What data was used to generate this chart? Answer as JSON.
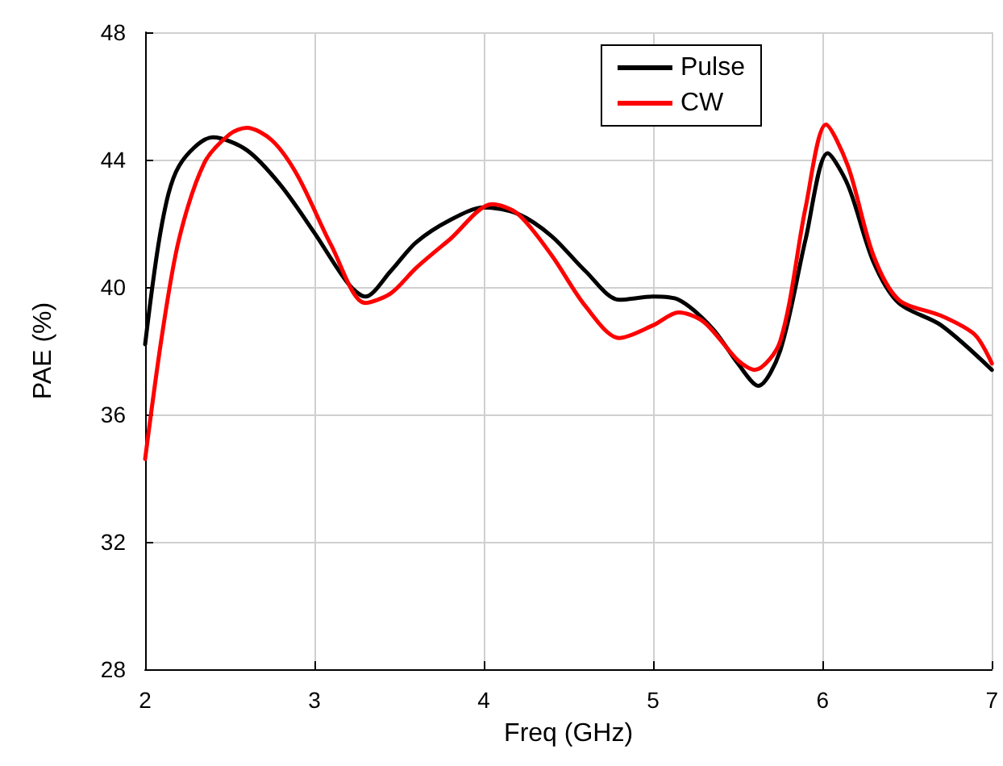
{
  "chart_data": {
    "type": "line",
    "xlabel": "Freq (GHz)",
    "ylabel": "PAE (%)",
    "xlim": [
      2,
      7
    ],
    "xticks": [
      2,
      3,
      4,
      5,
      6,
      7
    ],
    "ylim": [
      28,
      48
    ],
    "yticks": [
      28,
      32,
      36,
      40,
      44,
      48
    ],
    "grid": true,
    "legend": "top right",
    "marker": "none",
    "line_style": "solid",
    "series": [
      {
        "name": "Pulse",
        "color": "#000000",
        "x": [
          2.0,
          2.1,
          2.2,
          2.4,
          2.6,
          2.8,
          3.0,
          3.2,
          3.3,
          3.45,
          3.6,
          3.8,
          4.0,
          4.2,
          4.4,
          4.6,
          4.8,
          5.0,
          5.15,
          5.35,
          5.5,
          5.62,
          5.75,
          5.9,
          6.03,
          6.15,
          6.3,
          6.45,
          6.7,
          7.0
        ],
        "values": [
          38.2,
          42.0,
          43.8,
          44.7,
          44.3,
          43.2,
          41.7,
          40.1,
          39.7,
          40.5,
          41.4,
          42.1,
          42.5,
          42.3,
          41.6,
          40.5,
          39.6,
          39.7,
          39.6,
          38.7,
          37.6,
          36.9,
          38.0,
          41.5,
          44.2,
          43.2,
          40.8,
          39.5,
          38.8,
          37.4
        ]
      },
      {
        "name": "CW",
        "color": "#ff0000",
        "x": [
          2.0,
          2.1,
          2.2,
          2.35,
          2.5,
          2.6,
          2.75,
          2.9,
          3.1,
          3.3,
          3.45,
          3.6,
          3.8,
          4.05,
          4.2,
          4.4,
          4.6,
          4.8,
          5.0,
          5.15,
          5.3,
          5.5,
          5.6,
          5.75,
          5.9,
          6.02,
          6.15,
          6.3,
          6.45,
          6.7,
          6.9,
          7.0
        ],
        "values": [
          34.6,
          38.5,
          41.5,
          43.9,
          44.8,
          45.0,
          44.6,
          43.5,
          41.3,
          39.5,
          39.8,
          40.6,
          41.5,
          42.6,
          42.3,
          41.0,
          39.4,
          38.4,
          38.8,
          39.2,
          38.9,
          37.7,
          37.4,
          38.3,
          42.5,
          45.1,
          43.8,
          41.0,
          39.6,
          39.1,
          38.5,
          37.6
        ]
      }
    ]
  }
}
